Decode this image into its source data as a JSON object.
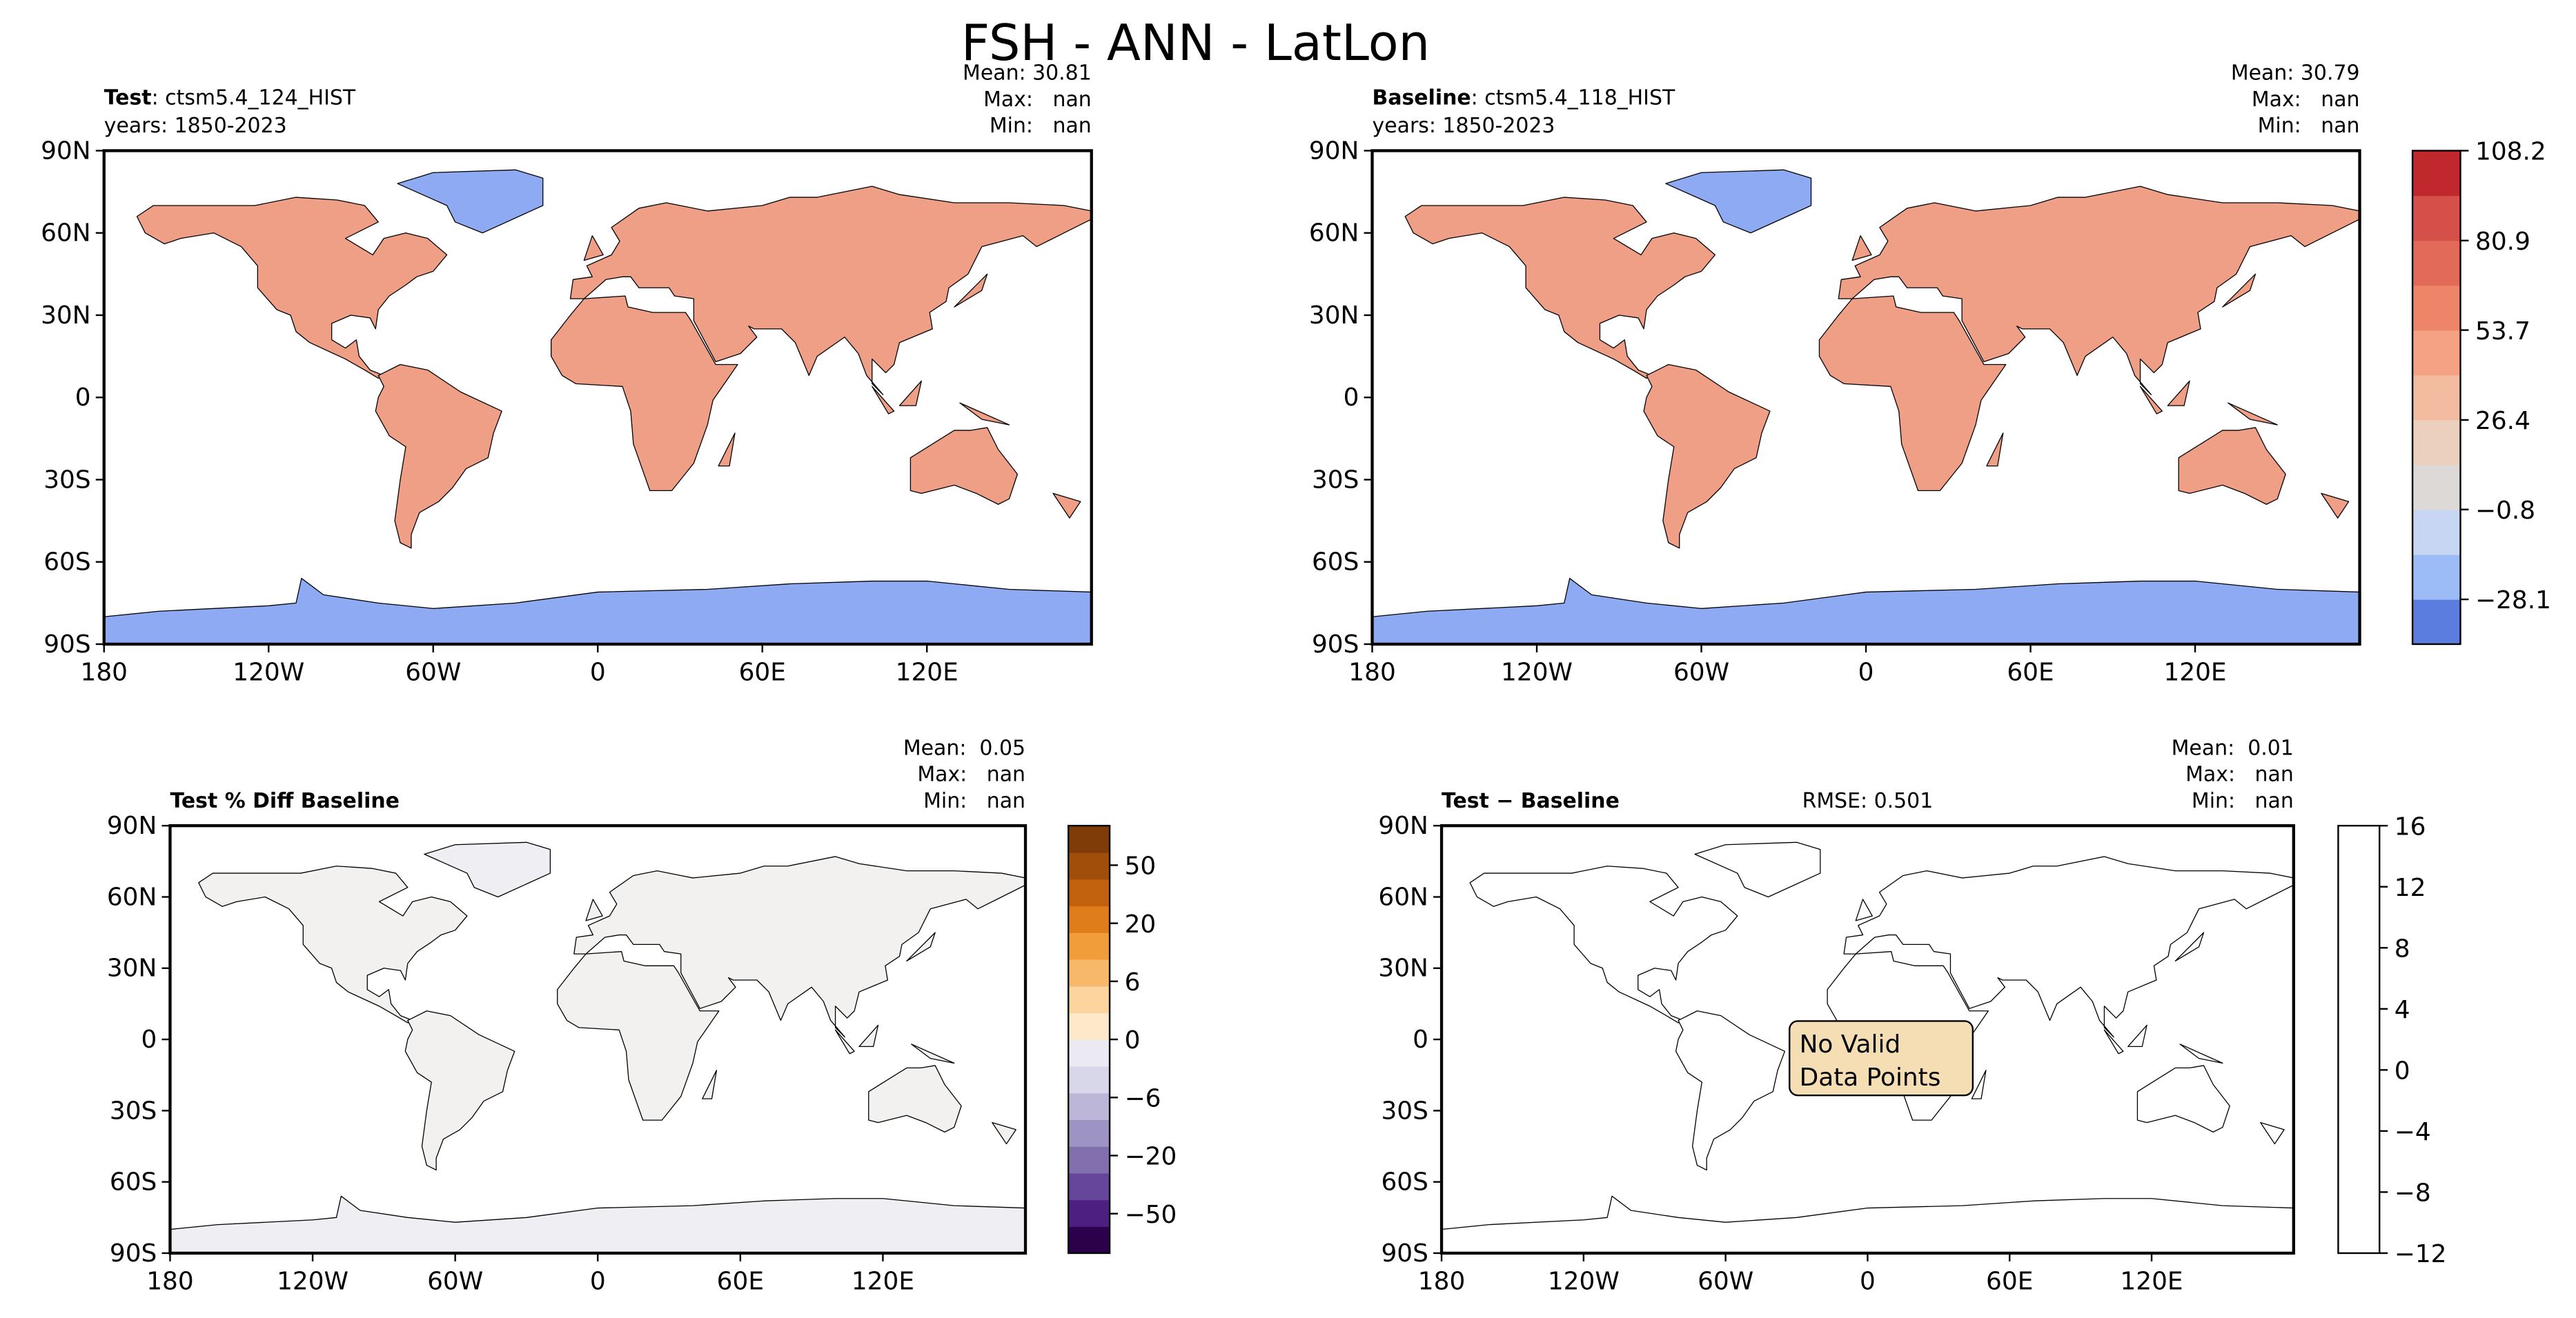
{
  "chart_data": [
    {
      "type": "map",
      "title": "FSH - ANN - LatLon",
      "title_bold": "Test",
      "title_rest": ": ctsm5.4_124_HIST",
      "years": "years: 1850-2023",
      "stats": [
        "Mean: 30.81",
        "Max:   nan",
        "Min:   nan"
      ],
      "land_color": "#ee9f85",
      "ice_color": "#8eaaf3",
      "xlim": [
        -180,
        180
      ],
      "ylim": [
        -90,
        90
      ],
      "xticks": [
        {
          "value": -180,
          "label": "180"
        },
        {
          "value": -120,
          "label": "120W"
        },
        {
          "value": -60,
          "label": "60W"
        },
        0,
        {
          "value": 60,
          "label": "60E"
        },
        {
          "value": 120,
          "label": "120E"
        }
      ],
      "yticks": [
        {
          "value": 90,
          "label": "90N"
        },
        {
          "value": 60,
          "label": "60N"
        },
        {
          "value": 30,
          "label": "30N"
        },
        0,
        {
          "value": -30,
          "label": "30S"
        },
        {
          "value": -60,
          "label": "60S"
        },
        {
          "value": -90,
          "label": "90S"
        }
      ]
    },
    {
      "type": "map",
      "title_bold": "Baseline",
      "title_rest": ": ctsm5.4_118_HIST",
      "years": "years: 1850-2023",
      "stats": [
        "Mean: 30.79",
        "Max:   nan",
        "Min:   nan"
      ],
      "land_color": "#ee9f85",
      "ice_color": "#8eaaf3",
      "xlim": [
        -180,
        180
      ],
      "ylim": [
        -90,
        90
      ],
      "xticks": [
        {
          "value": -180,
          "label": "180"
        },
        {
          "value": -120,
          "label": "120W"
        },
        {
          "value": -60,
          "label": "60W"
        },
        0,
        {
          "value": 60,
          "label": "60E"
        },
        {
          "value": 120,
          "label": "120E"
        }
      ],
      "yticks": [
        {
          "value": 90,
          "label": "90N"
        },
        {
          "value": 60,
          "label": "60N"
        },
        {
          "value": 30,
          "label": "30N"
        },
        0,
        {
          "value": -30,
          "label": "30S"
        },
        {
          "value": -60,
          "label": "60S"
        },
        {
          "value": -90,
          "label": "90S"
        }
      ],
      "colorbar": {
        "norm": "linear",
        "ylim": [
          -41.7,
          108.2
        ],
        "colors": [
          "#5b7de0",
          "#9bbcf7",
          "#c6d6f3",
          "#dcd9d6",
          "#ebd0be",
          "#f3bca0",
          "#f4a283",
          "#ee8468",
          "#e26a58",
          "#d6504a",
          "#c0282d"
        ],
        "yticks": [
          {
            "value": -28.1,
            "label": "−28.1"
          },
          {
            "value": -0.8,
            "label": "−0.8"
          },
          26.4,
          53.7,
          80.9,
          108.2
        ]
      }
    },
    {
      "type": "map",
      "title_bold": "Test % Diff Baseline",
      "stats": [
        "Mean:  0.05",
        "Max:   nan",
        "Min:   nan"
      ],
      "land_color": "#f3f1ef",
      "ice_color": "#eeeef3",
      "xlim": [
        -180,
        180
      ],
      "ylim": [
        -90,
        90
      ],
      "xticks": [
        {
          "value": -180,
          "label": "180"
        },
        {
          "value": -120,
          "label": "120W"
        },
        {
          "value": -60,
          "label": "60W"
        },
        0,
        {
          "value": 60,
          "label": "60E"
        },
        {
          "value": 120,
          "label": "120E"
        }
      ],
      "yticks": [
        {
          "value": 90,
          "label": "90N"
        },
        {
          "value": 60,
          "label": "60N"
        },
        {
          "value": 30,
          "label": "30N"
        },
        0,
        {
          "value": -30,
          "label": "30S"
        },
        {
          "value": -60,
          "label": "60S"
        },
        {
          "value": -90,
          "label": "90S"
        }
      ],
      "colorbar": {
        "norm": "boundary",
        "colors": [
          "#2d004b",
          "#4d1f80",
          "#65469a",
          "#8170ad",
          "#9e94c4",
          "#bcb6d9",
          "#d8d7ea",
          "#ebe9f2",
          "#fde8c9",
          "#fdd49e",
          "#f7b869",
          "#f09d3a",
          "#de7d1a",
          "#c2620e",
          "#a04e0a",
          "#7f3b08"
        ],
        "yticks": [
          {
            "value": -50,
            "label": "−50"
          },
          {
            "value": -20,
            "label": "−20"
          },
          {
            "value": -6,
            "label": "−6"
          },
          0,
          6,
          20,
          50
        ]
      }
    },
    {
      "type": "map",
      "title_bold": "Test − Baseline",
      "rmse": "RMSE: 0.501",
      "stats": [
        "Mean:  0.01",
        "Max:   nan",
        "Min:   nan"
      ],
      "annotation": [
        "No Valid",
        "Data Points"
      ],
      "land_color": "#ffffff",
      "ice_color": "#ffffff",
      "xlim": [
        -180,
        180
      ],
      "ylim": [
        -90,
        90
      ],
      "xticks": [
        {
          "value": -180,
          "label": "180"
        },
        {
          "value": -120,
          "label": "120W"
        },
        {
          "value": -60,
          "label": "60W"
        },
        0,
        {
          "value": 60,
          "label": "60E"
        },
        {
          "value": 120,
          "label": "120E"
        }
      ],
      "yticks": [
        {
          "value": 90,
          "label": "90N"
        },
        {
          "value": 60,
          "label": "60N"
        },
        {
          "value": 30,
          "label": "30N"
        },
        0,
        {
          "value": -30,
          "label": "30S"
        },
        {
          "value": -60,
          "label": "60S"
        },
        {
          "value": -90,
          "label": "90S"
        }
      ],
      "colorbar": {
        "norm": "linear",
        "ylim": [
          -12,
          16
        ],
        "colors": [
          "#ffffff"
        ],
        "yticks": [
          {
            "value": -12,
            "label": "−12"
          },
          {
            "value": -8,
            "label": "−8"
          },
          {
            "value": -4,
            "label": "−4"
          },
          0,
          4,
          8,
          12,
          16
        ]
      }
    }
  ]
}
